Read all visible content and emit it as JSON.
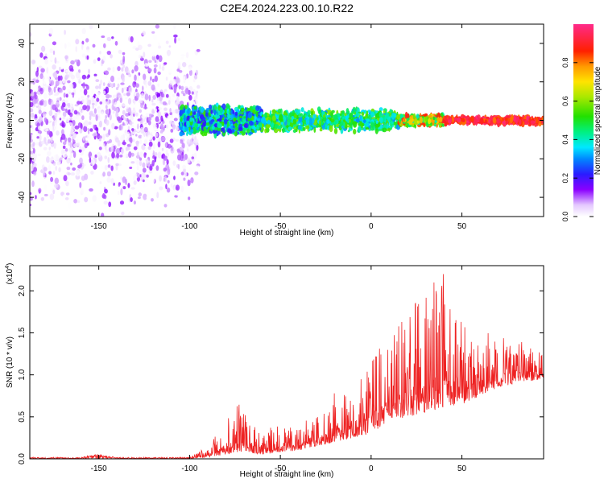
{
  "title": "C2E4.2024.223.00.10.R22",
  "chart_data": [
    {
      "type": "heatmap",
      "xlabel": "Height of straight line (km)",
      "ylabel": "Frequency (Hz)",
      "xlim": [
        -188,
        95
      ],
      "ylim": [
        -50,
        50
      ],
      "xticks": [
        -150,
        -100,
        -50,
        0,
        50
      ],
      "yticks": [
        -40,
        -20,
        0,
        20,
        40
      ],
      "colorbar": {
        "label": "Normalized spectral amplitude",
        "range": [
          0,
          1
        ],
        "ticks": [
          "0.0",
          "0.2",
          "0.4",
          "0.6",
          "0.8"
        ],
        "colormap": "rainbow (white-purple-blue-cyan-green-yellow-red-pink)"
      },
      "description_regions": [
        {
          "x_range": [
            -188,
            -95
          ],
          "y_range": [
            -50,
            50
          ],
          "amplitude": [
            0.0,
            0.15
          ],
          "note": "noise scattered across all frequencies"
        },
        {
          "x_range": [
            -105,
            -60
          ],
          "y_range": [
            -8,
            8
          ],
          "amplitude": [
            0.2,
            0.55
          ]
        },
        {
          "x_range": [
            -60,
            15
          ],
          "y_range": [
            -6,
            6
          ],
          "amplitude": [
            0.3,
            0.6
          ]
        },
        {
          "x_range": [
            15,
            40
          ],
          "y_range": [
            -3,
            3
          ],
          "amplitude": [
            0.4,
            0.9
          ]
        },
        {
          "x_range": [
            40,
            95
          ],
          "y_range": [
            -2,
            2
          ],
          "amplitude": [
            0.8,
            1.0
          ]
        }
      ]
    },
    {
      "type": "line",
      "xlabel": "Height of straight line (km)",
      "ylabel": "SNR (10 * v/v)",
      "yscale_label": "(x10",
      "yscale_exp": "4",
      "xlim": [
        -188,
        95
      ],
      "ylim": [
        0,
        2.3
      ],
      "xticks": [
        -150,
        -100,
        -50,
        0,
        50
      ],
      "yticks": [
        "0.0",
        "0.5",
        "1.0",
        "1.5",
        "2.0"
      ],
      "series_color": "#ee2222",
      "envelope": {
        "x": [
          -188,
          -160,
          -150,
          -140,
          -100,
          -90,
          -80,
          -75,
          -70,
          -60,
          -50,
          -40,
          -30,
          -20,
          -10,
          0,
          10,
          20,
          30,
          40,
          50,
          60,
          70,
          80,
          95
        ],
        "y": [
          0.02,
          0.02,
          0.07,
          0.02,
          0.02,
          0.15,
          0.45,
          0.72,
          0.6,
          0.35,
          0.4,
          0.45,
          0.5,
          0.85,
          0.75,
          1.25,
          1.55,
          1.85,
          2.0,
          2.3,
          1.6,
          1.5,
          1.5,
          1.4,
          1.35
        ]
      },
      "baseline": {
        "x": [
          -188,
          -100,
          -90,
          -80,
          -70,
          -60,
          -50,
          -40,
          -30,
          -20,
          -10,
          0,
          10,
          20,
          30,
          40,
          50,
          60,
          70,
          80,
          95
        ],
        "y": [
          0.0,
          0.0,
          0.02,
          0.05,
          0.08,
          0.05,
          0.08,
          0.1,
          0.15,
          0.2,
          0.25,
          0.3,
          0.45,
          0.5,
          0.55,
          0.6,
          0.65,
          0.75,
          0.85,
          0.9,
          0.95
        ]
      }
    }
  ]
}
